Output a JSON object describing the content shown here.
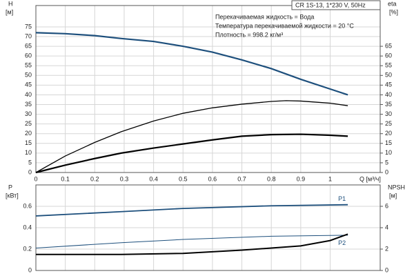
{
  "chart_data": [
    {
      "type": "line",
      "title": "CR 1S-13, 1*230 V, 50Hz",
      "annotations": [
        "Перекачиваемая жидкость = Вода",
        "Температура перекачиваемой жидкости = 20 °C",
        "Плотность = 998.2 кг/м³"
      ],
      "y_label": "H",
      "y_unit": "[м]",
      "y2_label": "eta",
      "y2_unit": "[%]",
      "x_label": "Q [м³/ч]",
      "xlim": [
        0,
        1.17
      ],
      "xticks": [
        0,
        0.1,
        0.2,
        0.3,
        0.4,
        0.5,
        0.6,
        0.7,
        0.8,
        0.9,
        1.0
      ],
      "ylim": [
        0,
        86
      ],
      "yticks": [
        0,
        5,
        10,
        15,
        20,
        25,
        30,
        35,
        40,
        45,
        50,
        55,
        60,
        65,
        70,
        75
      ],
      "y2lim": [
        0,
        86
      ],
      "y2ticks": [
        0,
        5,
        10,
        15,
        20,
        25,
        30,
        35,
        40,
        45,
        50,
        55,
        60,
        65
      ],
      "grid": true,
      "series": [
        {
          "color": "#1d4f7c",
          "width": 2.2,
          "x": [
            0,
            0.1,
            0.2,
            0.29,
            0.4,
            0.5,
            0.6,
            0.7,
            0.8,
            0.9,
            1.0,
            1.06
          ],
          "values": [
            72,
            71.5,
            70.5,
            69,
            67.5,
            65,
            62,
            58,
            53.5,
            48,
            43,
            40
          ]
        },
        {
          "color": "#000000",
          "width": 1.3,
          "axis": "y2",
          "x": [
            0,
            0.1,
            0.2,
            0.29,
            0.4,
            0.5,
            0.6,
            0.7,
            0.8,
            0.85,
            0.9,
            1.0,
            1.06
          ],
          "values": [
            0,
            8.5,
            15.5,
            21,
            26.5,
            30.5,
            33.3,
            35.2,
            36.6,
            37,
            36.8,
            35.7,
            34.4
          ]
        },
        {
          "color": "#000000",
          "width": 2.2,
          "axis": "y2",
          "x": [
            0,
            0.1,
            0.2,
            0.29,
            0.4,
            0.5,
            0.6,
            0.7,
            0.8,
            0.9,
            1.0,
            1.06
          ],
          "values": [
            0,
            3.8,
            7.2,
            10,
            12.6,
            14.7,
            16.8,
            18.7,
            19.5,
            19.7,
            19.2,
            18.7
          ]
        }
      ]
    },
    {
      "type": "line",
      "y_label": "P",
      "y_unit": "[кВт]",
      "y2_label": "NPSH",
      "y2_unit": "[м]",
      "xlim": [
        0,
        1.17
      ],
      "xticks": [
        0,
        0.1,
        0.2,
        0.3,
        0.4,
        0.5,
        0.6,
        0.7,
        0.8,
        0.9,
        1.0
      ],
      "ylim": [
        0,
        0.8
      ],
      "yticks": [
        0,
        0.2,
        0.4,
        0.6
      ],
      "y2lim": [
        0,
        8
      ],
      "y2ticks": [
        0,
        2,
        4,
        6
      ],
      "grid": true,
      "series": [
        {
          "name": "P1",
          "color": "#1d4f7c",
          "width": 1.8,
          "x": [
            0,
            0.29,
            0.5,
            0.8,
            1.06
          ],
          "values": [
            0.51,
            0.55,
            0.58,
            0.605,
            0.615
          ]
        },
        {
          "name": "P2",
          "color": "#1d4f7c",
          "width": 1,
          "x": [
            0,
            0.29,
            0.5,
            0.8,
            1.06
          ],
          "values": [
            0.21,
            0.26,
            0.29,
            0.32,
            0.33
          ]
        },
        {
          "color": "#000000",
          "width": 2,
          "axis": "y2",
          "x": [
            0,
            0.29,
            0.5,
            0.7,
            0.9,
            1.0,
            1.06
          ],
          "values": [
            1.5,
            1.5,
            1.6,
            1.9,
            2.3,
            2.8,
            3.4
          ]
        }
      ]
    }
  ]
}
